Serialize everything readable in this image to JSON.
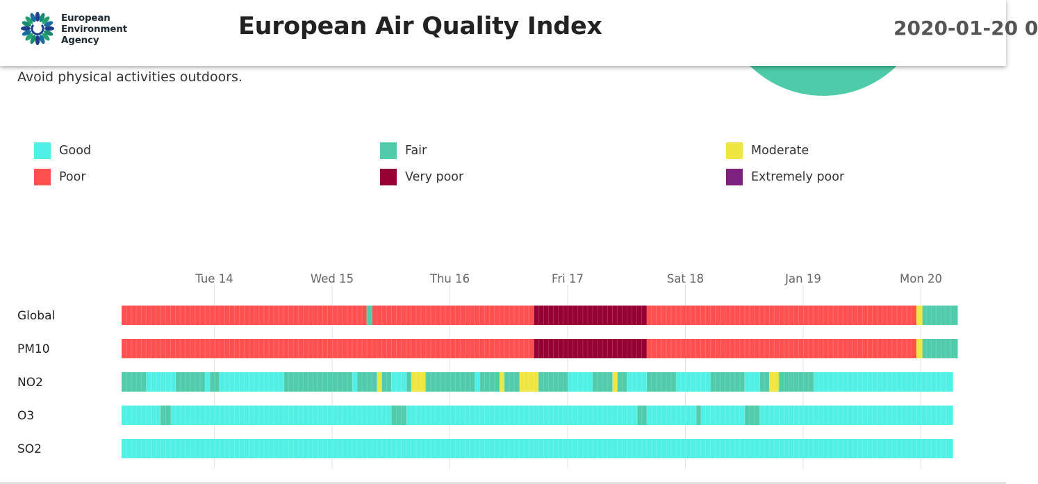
{
  "header": {
    "logo_lines": [
      "European",
      "Environment",
      "Agency"
    ],
    "title": "European Air Quality Index",
    "date": "2020-01-20 0"
  },
  "advice_text": "Avoid physical activities outdoors.",
  "legend": [
    {
      "label": "Good",
      "color": "#50f0e6"
    },
    {
      "label": "Fair",
      "color": "#50ccaa"
    },
    {
      "label": "Moderate",
      "color": "#f0e641"
    },
    {
      "label": "Poor",
      "color": "#ff5050"
    },
    {
      "label": "Very poor",
      "color": "#960032"
    },
    {
      "label": "Extremely poor",
      "color": "#7d2181"
    }
  ],
  "chart_data": {
    "type": "timeline",
    "x_ticks": [
      "Tue 14",
      "Wed 15",
      "Thu 16",
      "Fri 17",
      "Sat 18",
      "Jan 19",
      "Mon 20"
    ],
    "time_range_days": [
      0,
      7.1
    ],
    "grid": true,
    "series": [
      {
        "name": "Global",
        "segments": [
          {
            "start": 0,
            "end": 2.08,
            "level": "Poor"
          },
          {
            "start": 2.08,
            "end": 2.13,
            "level": "Fair"
          },
          {
            "start": 2.13,
            "end": 3.5,
            "level": "Poor"
          },
          {
            "start": 3.5,
            "end": 4.46,
            "level": "Very poor"
          },
          {
            "start": 4.46,
            "end": 6.75,
            "level": "Poor"
          },
          {
            "start": 6.75,
            "end": 6.8,
            "level": "Moderate"
          },
          {
            "start": 6.8,
            "end": 7.1,
            "level": "Fair"
          }
        ]
      },
      {
        "name": "PM10",
        "segments": [
          {
            "start": 0,
            "end": 3.5,
            "level": "Poor"
          },
          {
            "start": 3.5,
            "end": 4.46,
            "level": "Very poor"
          },
          {
            "start": 4.46,
            "end": 6.75,
            "level": "Poor"
          },
          {
            "start": 6.75,
            "end": 6.8,
            "level": "Moderate"
          },
          {
            "start": 6.8,
            "end": 7.1,
            "level": "Fair"
          }
        ]
      },
      {
        "name": "NO2",
        "segments": [
          {
            "start": 0,
            "end": 0.21,
            "level": "Fair"
          },
          {
            "start": 0.21,
            "end": 0.46,
            "level": "Good"
          },
          {
            "start": 0.46,
            "end": 0.71,
            "level": "Fair"
          },
          {
            "start": 0.71,
            "end": 0.75,
            "level": "Good"
          },
          {
            "start": 0.75,
            "end": 0.83,
            "level": "Fair"
          },
          {
            "start": 0.83,
            "end": 1.38,
            "level": "Good"
          },
          {
            "start": 1.38,
            "end": 1.96,
            "level": "Fair"
          },
          {
            "start": 1.96,
            "end": 2.0,
            "level": "Good"
          },
          {
            "start": 2.0,
            "end": 2.17,
            "level": "Fair"
          },
          {
            "start": 2.17,
            "end": 2.21,
            "level": "Moderate"
          },
          {
            "start": 2.21,
            "end": 2.29,
            "level": "Fair"
          },
          {
            "start": 2.29,
            "end": 2.42,
            "level": "Good"
          },
          {
            "start": 2.42,
            "end": 2.46,
            "level": "Fair"
          },
          {
            "start": 2.46,
            "end": 2.58,
            "level": "Moderate"
          },
          {
            "start": 2.58,
            "end": 3.0,
            "level": "Fair"
          },
          {
            "start": 3.0,
            "end": 3.04,
            "level": "Good"
          },
          {
            "start": 3.04,
            "end": 3.21,
            "level": "Fair"
          },
          {
            "start": 3.21,
            "end": 3.25,
            "level": "Moderate"
          },
          {
            "start": 3.25,
            "end": 3.38,
            "level": "Fair"
          },
          {
            "start": 3.38,
            "end": 3.54,
            "level": "Moderate"
          },
          {
            "start": 3.54,
            "end": 3.79,
            "level": "Fair"
          },
          {
            "start": 3.79,
            "end": 4.0,
            "level": "Good"
          },
          {
            "start": 4.0,
            "end": 4.17,
            "level": "Fair"
          },
          {
            "start": 4.17,
            "end": 4.21,
            "level": "Moderate"
          },
          {
            "start": 4.21,
            "end": 4.29,
            "level": "Fair"
          },
          {
            "start": 4.29,
            "end": 4.46,
            "level": "Good"
          },
          {
            "start": 4.46,
            "end": 4.71,
            "level": "Fair"
          },
          {
            "start": 4.71,
            "end": 5.0,
            "level": "Good"
          },
          {
            "start": 5.0,
            "end": 5.29,
            "level": "Fair"
          },
          {
            "start": 5.29,
            "end": 5.42,
            "level": "Good"
          },
          {
            "start": 5.42,
            "end": 5.5,
            "level": "Fair"
          },
          {
            "start": 5.5,
            "end": 5.58,
            "level": "Moderate"
          },
          {
            "start": 5.58,
            "end": 5.88,
            "level": "Fair"
          },
          {
            "start": 5.88,
            "end": 7.06,
            "level": "Good"
          }
        ]
      },
      {
        "name": "O3",
        "segments": [
          {
            "start": 0,
            "end": 0.33,
            "level": "Good"
          },
          {
            "start": 0.33,
            "end": 0.42,
            "level": "Fair"
          },
          {
            "start": 0.42,
            "end": 2.29,
            "level": "Good"
          },
          {
            "start": 2.29,
            "end": 2.42,
            "level": "Fair"
          },
          {
            "start": 2.42,
            "end": 4.38,
            "level": "Good"
          },
          {
            "start": 4.38,
            "end": 4.46,
            "level": "Fair"
          },
          {
            "start": 4.46,
            "end": 4.88,
            "level": "Good"
          },
          {
            "start": 4.88,
            "end": 4.92,
            "level": "Fair"
          },
          {
            "start": 4.92,
            "end": 5.29,
            "level": "Good"
          },
          {
            "start": 5.29,
            "end": 5.42,
            "level": "Fair"
          },
          {
            "start": 5.42,
            "end": 7.06,
            "level": "Good"
          }
        ]
      },
      {
        "name": "SO2",
        "segments": [
          {
            "start": 0,
            "end": 7.06,
            "level": "Good"
          }
        ]
      }
    ]
  }
}
